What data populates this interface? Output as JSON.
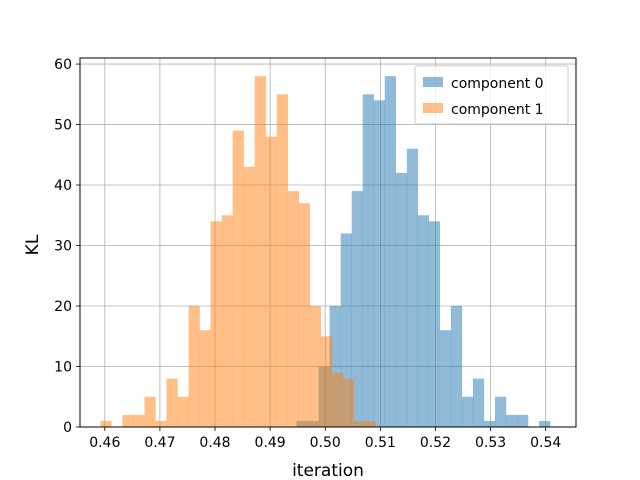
{
  "chart_data": {
    "type": "bar",
    "subtype": "histogram",
    "title": "",
    "xlabel": "iteration",
    "ylabel": "KL",
    "xlim": [
      0.4555,
      0.5455
    ],
    "ylim": [
      0,
      61
    ],
    "xticks": [
      0.46,
      0.47,
      0.48,
      0.49,
      0.5,
      0.51,
      0.52,
      0.53,
      0.54
    ],
    "xtick_labels": [
      "0.46",
      "0.47",
      "0.48",
      "0.49",
      "0.50",
      "0.51",
      "0.52",
      "0.53",
      "0.54"
    ],
    "yticks": [
      0,
      10,
      20,
      30,
      40,
      50,
      60
    ],
    "ytick_labels": [
      "0",
      "10",
      "20",
      "30",
      "40",
      "50",
      "60"
    ],
    "grid": true,
    "legend_position": "top-right",
    "series": [
      {
        "name": "component 0",
        "color": "#1f77b4",
        "alpha": 0.5,
        "bin_edges": [
          0.4948,
          0.4968,
          0.4988,
          0.5008,
          0.5028,
          0.5048,
          0.5068,
          0.5088,
          0.5108,
          0.5128,
          0.5148,
          0.5168,
          0.5188,
          0.5208,
          0.5228,
          0.5248,
          0.5268,
          0.5288,
          0.5308,
          0.5328,
          0.5348,
          0.5368,
          0.5388,
          0.5408
        ],
        "counts": [
          1,
          1,
          10,
          20,
          32,
          39,
          55,
          54,
          58,
          42,
          46,
          35,
          34,
          16,
          20,
          5,
          8,
          1,
          5,
          2,
          2,
          0,
          1
        ]
      },
      {
        "name": "component 1",
        "color": "#ff7f0e",
        "alpha": 0.5,
        "bin_edges": [
          0.4592,
          0.4612,
          0.4632,
          0.4652,
          0.4672,
          0.4692,
          0.4712,
          0.4732,
          0.4752,
          0.4772,
          0.4792,
          0.4812,
          0.4832,
          0.4852,
          0.4872,
          0.4892,
          0.4912,
          0.4932,
          0.4952,
          0.4972,
          0.4992,
          0.5012,
          0.5032,
          0.5052,
          0.5072,
          0.5092
        ],
        "counts": [
          1,
          0,
          2,
          2,
          5,
          1,
          8,
          5,
          20,
          16,
          34,
          35,
          49,
          43,
          58,
          48,
          55,
          39,
          37,
          20,
          15,
          9,
          8,
          1,
          1
        ]
      }
    ]
  }
}
